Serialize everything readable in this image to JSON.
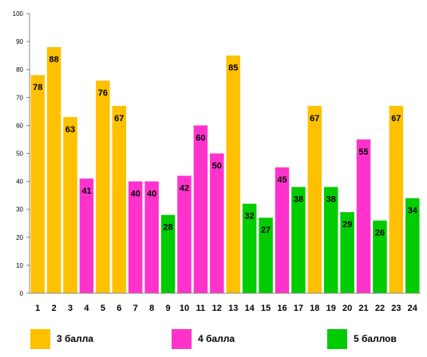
{
  "chart_data": {
    "type": "bar",
    "categories": [
      "1",
      "2",
      "3",
      "4",
      "5",
      "6",
      "7",
      "8",
      "9",
      "10",
      "11",
      "12",
      "13",
      "14",
      "15",
      "16",
      "17",
      "18",
      "19",
      "20",
      "21",
      "22",
      "23",
      "24"
    ],
    "values": [
      78,
      88,
      63,
      41,
      76,
      67,
      40,
      40,
      28,
      42,
      60,
      50,
      85,
      32,
      27,
      45,
      38,
      67,
      38,
      29,
      55,
      26,
      67,
      34
    ],
    "groups": [
      3,
      3,
      3,
      4,
      3,
      3,
      4,
      4,
      5,
      4,
      4,
      4,
      3,
      5,
      5,
      4,
      5,
      3,
      5,
      5,
      4,
      5,
      3,
      5
    ],
    "ylim": [
      0,
      100
    ],
    "yticks": [
      0,
      10,
      20,
      30,
      40,
      50,
      60,
      70,
      80,
      90,
      100
    ],
    "grid": false,
    "legend_position": "bottom",
    "legend": [
      {
        "group": 3,
        "label": "3 балла",
        "color": "#FFC000"
      },
      {
        "group": 4,
        "label": "4 балла",
        "color": "#FF33CC"
      },
      {
        "group": 5,
        "label": "5 баллов",
        "color": "#00CC00"
      }
    ],
    "title": "",
    "xlabel": "",
    "ylabel": ""
  }
}
